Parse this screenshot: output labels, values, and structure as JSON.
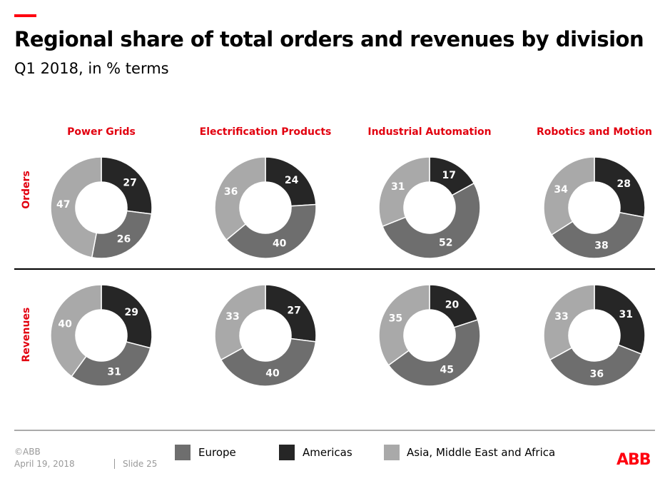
{
  "title": "Regional share of total orders and revenues by division",
  "subtitle": "Q1 2018, in % terms",
  "footer": {
    "copyright": "©ABB",
    "date": "April 19, 2018",
    "slide": "Slide 25",
    "logo": "ABB"
  },
  "colors": {
    "Europe": "#6e6e6e",
    "Americas": "#262626",
    "Asia, Middle East and Africa": "#a9a9a9",
    "accent": "#e2000f"
  },
  "chart_data": {
    "type": "donut",
    "columns": [
      "Power Grids",
      "Electrification Products",
      "Industrial Automation",
      "Robotics and Motion"
    ],
    "rows": [
      "Orders",
      "Revenues"
    ],
    "legend": [
      "Europe",
      "Americas",
      "Asia, Middle East and Africa"
    ],
    "legend_position": "bottom",
    "values": {
      "Orders": [
        {
          "Americas": 27,
          "Europe": 26,
          "Asia, Middle East and Africa": 47
        },
        {
          "Americas": 24,
          "Europe": 40,
          "Asia, Middle East and Africa": 36
        },
        {
          "Americas": 17,
          "Europe": 52,
          "Asia, Middle East and Africa": 31
        },
        {
          "Americas": 28,
          "Europe": 38,
          "Asia, Middle East and Africa": 34
        }
      ],
      "Revenues": [
        {
          "Americas": 29,
          "Europe": 31,
          "Asia, Middle East and Africa": 40
        },
        {
          "Americas": 27,
          "Europe": 40,
          "Asia, Middle East and Africa": 33
        },
        {
          "Americas": 20,
          "Europe": 45,
          "Asia, Middle East and Africa": 35
        },
        {
          "Americas": 31,
          "Europe": 36,
          "Asia, Middle East and Africa": 33
        }
      ]
    }
  }
}
